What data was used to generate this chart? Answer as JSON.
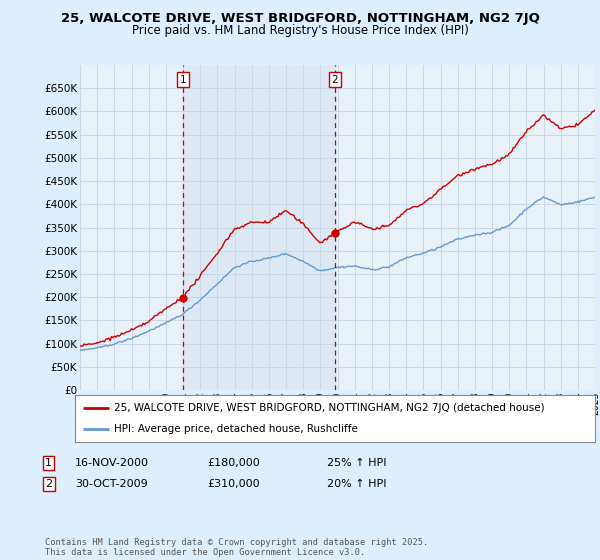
{
  "title": "25, WALCOTE DRIVE, WEST BRIDGFORD, NOTTINGHAM, NG2 7JQ",
  "subtitle": "Price paid vs. HM Land Registry's House Price Index (HPI)",
  "legend_line1": "25, WALCOTE DRIVE, WEST BRIDGFORD, NOTTINGHAM, NG2 7JQ (detached house)",
  "legend_line2": "HPI: Average price, detached house, Rushcliffe",
  "annotation1_date": "16-NOV-2000",
  "annotation1_price": "£180,000",
  "annotation1_hpi": "25% ↑ HPI",
  "annotation2_date": "30-OCT-2009",
  "annotation2_price": "£310,000",
  "annotation2_hpi": "20% ↑ HPI",
  "footer": "Contains HM Land Registry data © Crown copyright and database right 2025.\nThis data is licensed under the Open Government Licence v3.0.",
  "red_color": "#cc0000",
  "blue_color": "#6699cc",
  "blue_fill_color": "#dde8f5",
  "grid_color": "#c8d8e8",
  "background_color": "#ddeeff",
  "plot_bg_color": "#e8f0f8",
  "annotation_vline_color": "#cc0000",
  "ylim": [
    0,
    700000
  ],
  "yticks": [
    0,
    50000,
    100000,
    150000,
    200000,
    250000,
    300000,
    350000,
    400000,
    450000,
    500000,
    550000,
    600000,
    650000
  ],
  "year_start": 1995,
  "year_end": 2025,
  "annotation1_year": 2001.0,
  "annotation2_year": 2009.85,
  "annotation1_price_val": 180000,
  "annotation2_price_val": 310000,
  "hpi_waypoints_x": [
    1995,
    1996,
    1997,
    1998,
    1999,
    2000,
    2001,
    2002,
    2003,
    2004,
    2005,
    2006,
    2007,
    2008,
    2009,
    2010,
    2011,
    2012,
    2013,
    2014,
    2015,
    2016,
    2017,
    2018,
    2019,
    2020,
    2021,
    2022,
    2023,
    2024,
    2025
  ],
  "hpi_waypoints_y": [
    85000,
    90000,
    100000,
    112000,
    128000,
    145000,
    165000,
    195000,
    230000,
    265000,
    278000,
    285000,
    295000,
    278000,
    258000,
    265000,
    268000,
    260000,
    265000,
    285000,
    295000,
    308000,
    325000,
    335000,
    340000,
    355000,
    390000,
    415000,
    398000,
    405000,
    415000
  ],
  "prop_waypoints_x": [
    1995,
    1996,
    1997,
    1998,
    1999,
    2000,
    2001,
    2002,
    2003,
    2004,
    2005,
    2006,
    2007,
    2008,
    2009,
    2010,
    2011,
    2012,
    2013,
    2014,
    2015,
    2016,
    2017,
    2018,
    2019,
    2020,
    2021,
    2022,
    2023,
    2024,
    2025
  ],
  "prop_waypoints_y": [
    95000,
    102000,
    115000,
    130000,
    148000,
    175000,
    200000,
    245000,
    295000,
    345000,
    360000,
    360000,
    385000,
    355000,
    315000,
    340000,
    360000,
    345000,
    352000,
    385000,
    400000,
    430000,
    460000,
    475000,
    485000,
    505000,
    555000,
    590000,
    560000,
    570000,
    600000
  ]
}
